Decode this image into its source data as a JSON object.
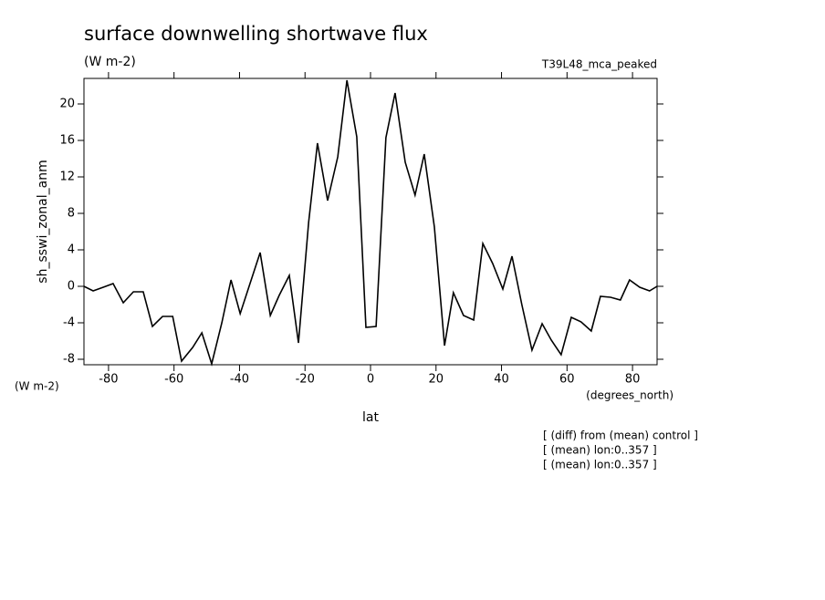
{
  "chart_data": {
    "type": "line",
    "title": "surface downwelling shortwave flux",
    "units": "(W m-2)",
    "dataset": "T39L48_mca_peaked",
    "y_label": "sh_sswi_zonal_anm",
    "y_units": "(W m-2)",
    "x_label": "lat",
    "x_units": "(degrees_north)",
    "notes": [
      "[ (diff) from (mean) control ]",
      "[ (mean) lon:0..357 ]",
      "[ (mean) lon:0..357 ]"
    ],
    "color": "#000000",
    "x": [
      -87.5,
      -84.7,
      -81.6,
      -78.6,
      -75.5,
      -72.4,
      -69.4,
      -66.6,
      -63.5,
      -60.4,
      -57.7,
      -54.3,
      -51.5,
      -48.5,
      -45.4,
      -42.6,
      -39.8,
      -36.8,
      -33.7,
      -30.6,
      -27.9,
      -24.8,
      -22.0,
      -18.9,
      -16.2,
      -13.1,
      -10.0,
      -7.2,
      -4.2,
      -1.4,
      1.7,
      4.7,
      7.5,
      10.6,
      13.6,
      16.4,
      19.5,
      22.6,
      25.3,
      28.4,
      31.5,
      34.3,
      37.3,
      40.4,
      43.2,
      46.2,
      49.3,
      52.4,
      55.2,
      58.2,
      61.3,
      64.3,
      67.4,
      70.2,
      73.3,
      76.3,
      79.1,
      82.2,
      85.2,
      87.5
    ],
    "values": [
      0,
      -0.5,
      -0.1,
      0.3,
      -1.8,
      -0.6,
      -0.6,
      -4.4,
      -3.3,
      -3.3,
      -8.2,
      -6.7,
      -5.1,
      -8.5,
      -4.0,
      0.7,
      -3.0,
      0.3,
      3.7,
      -3.2,
      -1.0,
      1.2,
      -6.2,
      7.0,
      15.7,
      9.4,
      14.2,
      22.6,
      16.4,
      -4.5,
      -4.4,
      16.3,
      21.2,
      13.6,
      10.0,
      14.5,
      6.5,
      -6.5,
      -0.7,
      -3.2,
      -3.7,
      4.7,
      2.5,
      -0.3,
      3.3,
      -2.0,
      -7.0,
      -4.1,
      -5.9,
      -7.5,
      -3.4,
      -3.9,
      -4.9,
      -1.1,
      -1.2,
      -1.5,
      0.7,
      -0.1,
      -0.5,
      0
    ],
    "xlim": [
      -87.5,
      87.5
    ],
    "xticks": [
      -80,
      -60,
      -40,
      -20,
      0,
      20,
      40,
      60,
      80
    ],
    "ylim": [
      -8.6,
      22.8
    ],
    "yticks": [
      -8,
      -4,
      0,
      4,
      8,
      12,
      16,
      20
    ]
  }
}
